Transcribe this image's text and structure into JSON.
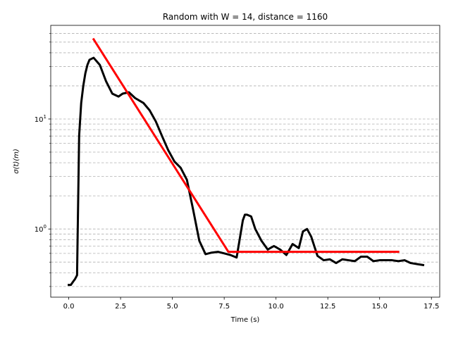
{
  "chart_data": {
    "type": "line",
    "title": "Random with W = 14, distance = 1160",
    "xlabel": "Time (s)",
    "ylabel": "σ(t)(m)",
    "xlim": [
      -0.87,
      17.9
    ],
    "ylim": [
      0.24,
      71
    ],
    "yscale": "log",
    "grid": "y-major-and-minor-dashed",
    "x_ticks": [
      0.0,
      2.5,
      5.0,
      7.5,
      10.0,
      12.5,
      15.0,
      17.5
    ],
    "x_tick_labels": [
      "0.0",
      "2.5",
      "5.0",
      "7.5",
      "10.0",
      "12.5",
      "15.0",
      "17.5"
    ],
    "y_major_ticks": [
      1,
      10
    ],
    "y_tick_labels": [
      {
        "base": "10",
        "exp": "0"
      },
      {
        "base": "10",
        "exp": "1"
      }
    ],
    "y_minor_ticks": [
      0.3,
      0.4,
      0.5,
      0.6,
      0.7,
      0.8,
      0.9,
      2,
      3,
      4,
      5,
      6,
      7,
      8,
      9,
      20,
      30,
      40,
      50,
      60
    ],
    "series": [
      {
        "color": "#000000",
        "x": [
          0.0,
          0.1,
          0.2,
          0.3,
          0.4,
          0.5,
          0.6,
          0.7,
          0.8,
          0.9,
          1.0,
          1.2,
          1.5,
          1.8,
          2.1,
          2.4,
          2.6,
          2.9,
          3.2,
          3.6,
          3.9,
          4.2,
          4.5,
          4.8,
          5.1,
          5.4,
          5.7,
          6.0,
          6.3,
          6.6,
          6.9,
          7.2,
          7.5,
          7.8,
          8.1,
          8.4,
          8.5,
          8.6,
          8.8,
          9.0,
          9.3,
          9.6,
          9.9,
          10.2,
          10.5,
          10.8,
          11.1,
          11.3,
          11.5,
          11.7,
          12.0,
          12.3,
          12.6,
          12.9,
          13.2,
          13.5,
          13.8,
          14.1,
          14.4,
          14.7,
          15.0,
          15.3,
          15.6,
          15.9,
          16.2,
          16.5,
          16.8,
          17.1
        ],
        "y": [
          0.31,
          0.31,
          0.33,
          0.35,
          0.38,
          7.0,
          14.0,
          20.0,
          26.0,
          31.0,
          34.5,
          36.0,
          31.0,
          22.0,
          17.0,
          16.0,
          17.0,
          17.5,
          15.5,
          14.0,
          12.0,
          9.5,
          7.0,
          5.2,
          4.1,
          3.6,
          2.8,
          1.5,
          0.78,
          0.59,
          0.61,
          0.62,
          0.6,
          0.58,
          0.55,
          1.2,
          1.35,
          1.35,
          1.3,
          1.0,
          0.78,
          0.65,
          0.7,
          0.65,
          0.58,
          0.73,
          0.67,
          0.95,
          1.0,
          0.85,
          0.57,
          0.52,
          0.53,
          0.49,
          0.53,
          0.52,
          0.51,
          0.56,
          0.56,
          0.51,
          0.52,
          0.52,
          0.52,
          0.51,
          0.52,
          0.49,
          0.48,
          0.47
        ]
      },
      {
        "color": "#ff0000",
        "x": [
          1.2,
          7.7,
          15.9
        ],
        "y": [
          53.0,
          0.62,
          0.62
        ]
      }
    ]
  }
}
